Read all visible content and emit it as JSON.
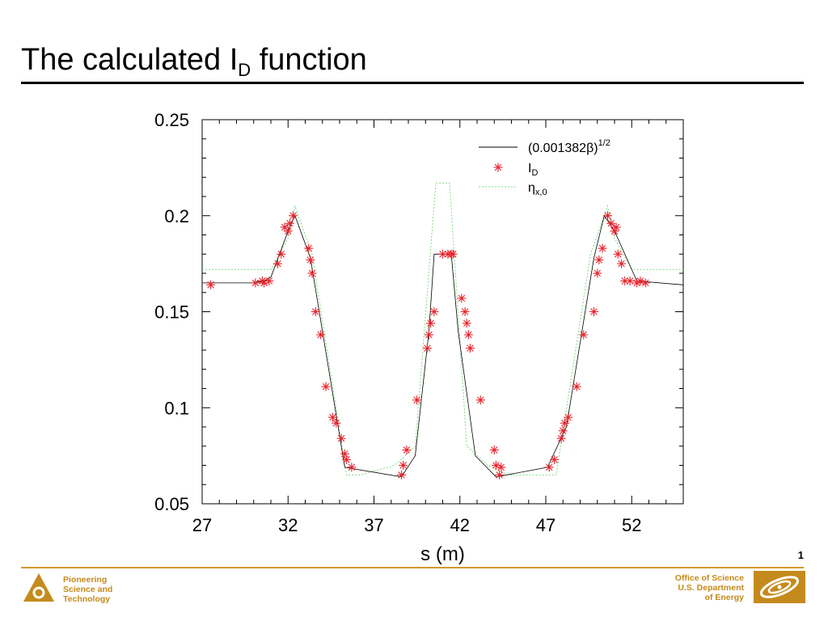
{
  "slide": {
    "title": "The calculated I",
    "title_subscript": "D",
    "title_suffix": " function",
    "page_number": "1",
    "footer_left": [
      "Pioneering",
      "Science and",
      "Technology"
    ],
    "footer_right": [
      "Office of Science",
      "U.S. Department",
      "of Energy"
    ]
  },
  "colors": {
    "accent": "#d39a2a",
    "series_line": "#000000",
    "series_markers": "#e8212a",
    "series_dotted": "#7fd87f"
  },
  "chart_data": {
    "type": "line",
    "xlabel": "s (m)",
    "ylabel": "",
    "xlim": [
      27,
      55
    ],
    "ylim": [
      0.05,
      0.25
    ],
    "xticks": [
      "27",
      "32",
      "37",
      "42",
      "47",
      "52"
    ],
    "xtick_values": [
      27,
      32,
      37,
      42,
      47,
      52
    ],
    "yticks": [
      "0.25",
      "0.2",
      "0.15",
      "0.1",
      "0.05"
    ],
    "ytick_values": [
      0.25,
      0.2,
      0.15,
      0.1,
      0.05
    ],
    "legend_position": "top-right",
    "series": [
      {
        "name": "(0.001382β)",
        "name_sup": "1/2",
        "style": "line",
        "x": [
          27,
          29.9,
          30.6,
          31.0,
          32.0,
          32.4,
          33.3,
          35.3,
          38.6,
          39.4,
          40.2,
          40.5,
          41.5,
          41.9,
          42.9,
          44.1,
          47.1,
          48.2,
          49.8,
          50.4,
          51.0,
          52.3,
          55
        ],
        "y": [
          0.165,
          0.165,
          0.166,
          0.168,
          0.192,
          0.2,
          0.178,
          0.069,
          0.064,
          0.075,
          0.14,
          0.18,
          0.18,
          0.14,
          0.075,
          0.064,
          0.069,
          0.09,
          0.178,
          0.2,
          0.192,
          0.166,
          0.164
        ]
      },
      {
        "name": "I",
        "name_sub": "D",
        "style": "markers",
        "x": [
          27.5,
          30.1,
          30.5,
          30.6,
          30.9,
          31.4,
          31.6,
          31.8,
          32.0,
          32.1,
          32.3,
          33.2,
          33.3,
          33.4,
          33.6,
          33.9,
          34.2,
          34.6,
          34.8,
          35.1,
          35.3,
          35.4,
          35.7,
          38.6,
          38.7,
          38.9,
          39.5,
          40.1,
          40.2,
          40.3,
          40.5,
          41.0,
          41.3,
          41.5,
          41.6,
          42.1,
          42.3,
          42.4,
          42.5,
          42.6,
          43.2,
          44.0,
          44.1,
          44.3,
          44.4,
          47.2,
          47.5,
          47.9,
          48.0,
          48.1,
          48.3,
          48.8,
          49.2,
          49.8,
          50.0,
          50.1,
          50.3,
          50.6,
          50.8,
          51.0,
          51.1,
          51.2,
          51.4,
          51.6,
          51.9,
          52.3,
          52.5,
          52.8
        ],
        "y": [
          0.164,
          0.165,
          0.166,
          0.165,
          0.166,
          0.175,
          0.18,
          0.194,
          0.192,
          0.196,
          0.2,
          0.183,
          0.177,
          0.17,
          0.15,
          0.138,
          0.111,
          0.095,
          0.092,
          0.084,
          0.076,
          0.073,
          0.069,
          0.065,
          0.07,
          0.078,
          0.104,
          0.131,
          0.138,
          0.144,
          0.15,
          0.18,
          0.18,
          0.18,
          0.18,
          0.157,
          0.15,
          0.144,
          0.138,
          0.131,
          0.104,
          0.078,
          0.07,
          0.065,
          0.069,
          0.069,
          0.073,
          0.084,
          0.088,
          0.092,
          0.095,
          0.111,
          0.138,
          0.15,
          0.17,
          0.177,
          0.183,
          0.2,
          0.196,
          0.192,
          0.194,
          0.18,
          0.175,
          0.166,
          0.166,
          0.165,
          0.166,
          0.165
        ]
      },
      {
        "name": "η",
        "name_sub": "x,0",
        "style": "dotted",
        "x": [
          27,
          31.0,
          32.1,
          32.4,
          33.4,
          35.4,
          36.2,
          38.2,
          39.4,
          40.6,
          41.4,
          42.4,
          43.6,
          44.8,
          46.8,
          47.6,
          49.6,
          50.6,
          50.9,
          52.0,
          55
        ],
        "y": [
          0.172,
          0.172,
          0.19,
          0.205,
          0.18,
          0.065,
          0.065,
          0.07,
          0.08,
          0.217,
          0.217,
          0.08,
          0.07,
          0.065,
          0.065,
          0.065,
          0.18,
          0.205,
          0.19,
          0.172,
          0.172
        ]
      }
    ]
  }
}
